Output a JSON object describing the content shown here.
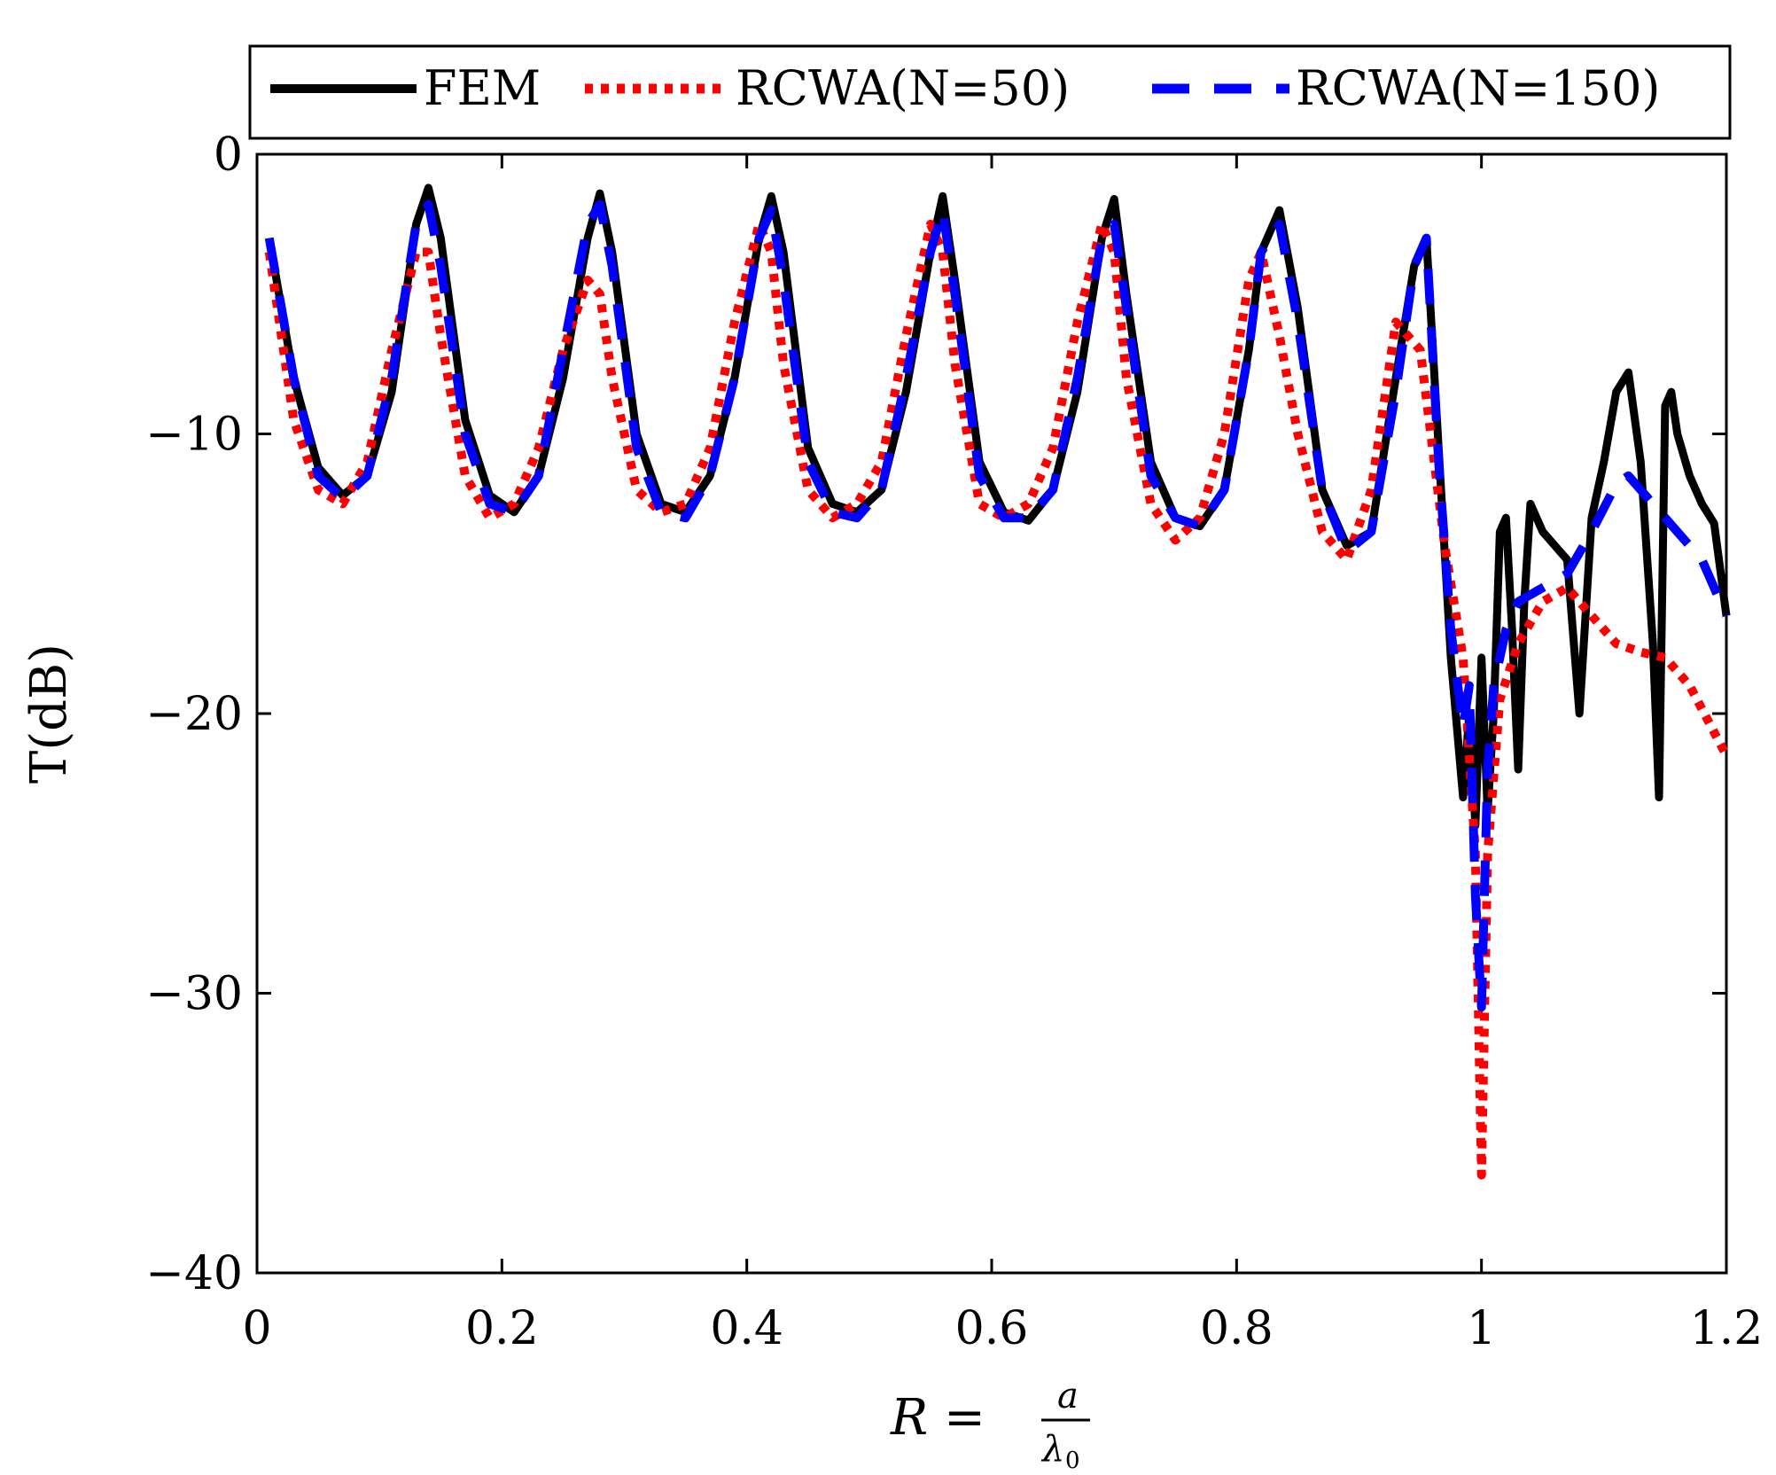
{
  "chart_data": {
    "type": "line",
    "title": "",
    "xlabel": {
      "main": "R =",
      "numerator": "a",
      "denominator": "λ",
      "subscript": "0"
    },
    "ylabel": "T(dB)",
    "xlim": [
      0,
      1.2
    ],
    "ylim": [
      -40,
      0
    ],
    "x_ticks": [
      0,
      0.2,
      0.4,
      0.6,
      0.8,
      1,
      1.2
    ],
    "x_tick_labels": [
      "0",
      "0.2",
      "0.4",
      "0.6",
      "0.8",
      "1",
      "1.2"
    ],
    "y_ticks": [
      0,
      -10,
      -20,
      -30,
      -40
    ],
    "y_tick_labels": [
      "0",
      "−10",
      "−20",
      "−30",
      "−40"
    ],
    "grid": false,
    "legend_position": "top",
    "series": [
      {
        "name": "FEM",
        "color": "#000000",
        "style": "solid",
        "x": [
          0.01,
          0.03,
          0.05,
          0.07,
          0.09,
          0.11,
          0.13,
          0.14,
          0.15,
          0.17,
          0.19,
          0.21,
          0.23,
          0.25,
          0.27,
          0.28,
          0.29,
          0.31,
          0.33,
          0.35,
          0.37,
          0.39,
          0.41,
          0.42,
          0.43,
          0.45,
          0.47,
          0.49,
          0.51,
          0.53,
          0.55,
          0.56,
          0.57,
          0.59,
          0.61,
          0.63,
          0.65,
          0.67,
          0.69,
          0.7,
          0.71,
          0.73,
          0.75,
          0.77,
          0.79,
          0.81,
          0.82,
          0.835,
          0.85,
          0.87,
          0.89,
          0.91,
          0.93,
          0.945,
          0.955,
          0.965,
          0.975,
          0.985,
          0.99,
          0.995,
          1.0,
          1.005,
          1.01,
          1.015,
          1.02,
          1.025,
          1.03,
          1.035,
          1.04,
          1.05,
          1.06,
          1.07,
          1.08,
          1.085,
          1.09,
          1.1,
          1.11,
          1.12,
          1.13,
          1.14,
          1.145,
          1.15,
          1.155,
          1.16,
          1.17,
          1.18,
          1.19,
          1.2
        ],
        "values": [
          -3.0,
          -8.0,
          -11.2,
          -12.2,
          -11.5,
          -8.5,
          -2.5,
          -1.2,
          -3.0,
          -9.5,
          -12.2,
          -12.8,
          -11.5,
          -8.0,
          -3.0,
          -1.4,
          -3.5,
          -10.0,
          -12.5,
          -12.8,
          -11.5,
          -8.0,
          -3.0,
          -1.5,
          -3.5,
          -10.5,
          -12.5,
          -12.8,
          -12.0,
          -8.5,
          -3.5,
          -1.5,
          -4.5,
          -11.0,
          -12.8,
          -13.1,
          -12.0,
          -8.5,
          -3.0,
          -1.6,
          -5.0,
          -11.0,
          -13.0,
          -13.3,
          -12.0,
          -7.0,
          -3.5,
          -2.0,
          -5.5,
          -12.0,
          -14.0,
          -13.5,
          -8.0,
          -4.0,
          -3.0,
          -10.5,
          -18.0,
          -23.0,
          -20.0,
          -24.0,
          -18.0,
          -23.5,
          -20.0,
          -13.5,
          -13.0,
          -17.0,
          -22.0,
          -16.0,
          -12.5,
          -13.5,
          -14.0,
          -14.5,
          -20.0,
          -16.5,
          -13.0,
          -11.0,
          -8.5,
          -7.8,
          -11.0,
          -17.5,
          -23.0,
          -9.0,
          -8.5,
          -10.0,
          -11.5,
          -12.5,
          -13.2,
          -16.5
        ]
      },
      {
        "name": "RCWA(N=50)",
        "color": "#ff0000",
        "style": "dotted",
        "x": [
          0.01,
          0.03,
          0.05,
          0.07,
          0.09,
          0.11,
          0.13,
          0.14,
          0.15,
          0.17,
          0.19,
          0.21,
          0.23,
          0.25,
          0.27,
          0.28,
          0.29,
          0.31,
          0.33,
          0.35,
          0.37,
          0.39,
          0.41,
          0.42,
          0.43,
          0.45,
          0.47,
          0.49,
          0.51,
          0.53,
          0.55,
          0.56,
          0.57,
          0.59,
          0.61,
          0.63,
          0.65,
          0.67,
          0.69,
          0.7,
          0.71,
          0.73,
          0.75,
          0.77,
          0.79,
          0.81,
          0.82,
          0.835,
          0.85,
          0.87,
          0.89,
          0.91,
          0.93,
          0.95,
          0.97,
          0.985,
          0.995,
          1.0,
          1.005,
          1.015,
          1.03,
          1.05,
          1.07,
          1.09,
          1.11,
          1.13,
          1.15,
          1.17,
          1.2
        ],
        "values": [
          -3.5,
          -9.5,
          -12.0,
          -12.5,
          -11.0,
          -7.0,
          -3.5,
          -3.5,
          -6.5,
          -11.5,
          -13.0,
          -12.5,
          -10.5,
          -7.0,
          -4.5,
          -5.0,
          -8.0,
          -12.0,
          -12.8,
          -12.5,
          -10.5,
          -6.0,
          -2.5,
          -3.5,
          -7.5,
          -12.0,
          -13.0,
          -12.5,
          -11.0,
          -6.5,
          -2.5,
          -3.5,
          -7.5,
          -12.5,
          -13.0,
          -12.5,
          -10.5,
          -6.0,
          -2.5,
          -3.5,
          -8.0,
          -12.5,
          -13.8,
          -13.0,
          -10.0,
          -4.5,
          -3.5,
          -6.5,
          -10.0,
          -13.5,
          -14.5,
          -12.0,
          -6.0,
          -7.0,
          -14.0,
          -18.0,
          -25.0,
          -36.5,
          -25.0,
          -19.5,
          -17.5,
          -16.0,
          -15.5,
          -16.5,
          -17.5,
          -17.8,
          -18.0,
          -19.0,
          -21.5
        ]
      },
      {
        "name": "RCWA(N=150)",
        "color": "#0000ff",
        "style": "dashed",
        "x": [
          0.01,
          0.03,
          0.05,
          0.07,
          0.09,
          0.11,
          0.13,
          0.14,
          0.15,
          0.17,
          0.19,
          0.21,
          0.23,
          0.25,
          0.27,
          0.28,
          0.29,
          0.31,
          0.33,
          0.35,
          0.37,
          0.39,
          0.41,
          0.42,
          0.43,
          0.45,
          0.47,
          0.49,
          0.51,
          0.53,
          0.55,
          0.56,
          0.57,
          0.59,
          0.61,
          0.63,
          0.65,
          0.67,
          0.69,
          0.7,
          0.71,
          0.73,
          0.75,
          0.77,
          0.79,
          0.81,
          0.82,
          0.835,
          0.85,
          0.87,
          0.89,
          0.91,
          0.93,
          0.945,
          0.955,
          0.965,
          0.975,
          0.985,
          0.99,
          0.995,
          1.0,
          1.005,
          1.01,
          1.02,
          1.03,
          1.05,
          1.07,
          1.09,
          1.11,
          1.12,
          1.14,
          1.16,
          1.18,
          1.2
        ],
        "values": [
          -3.0,
          -8.0,
          -11.5,
          -12.3,
          -11.5,
          -8.0,
          -2.5,
          -1.8,
          -4.0,
          -10.0,
          -12.5,
          -12.8,
          -11.5,
          -7.0,
          -2.5,
          -1.8,
          -4.0,
          -10.5,
          -12.8,
          -13.0,
          -11.5,
          -8.0,
          -3.0,
          -2.0,
          -4.5,
          -11.0,
          -12.8,
          -13.0,
          -12.0,
          -8.0,
          -3.5,
          -2.0,
          -5.0,
          -11.5,
          -13.0,
          -13.0,
          -12.0,
          -8.0,
          -3.0,
          -2.5,
          -5.5,
          -11.5,
          -13.0,
          -13.3,
          -12.0,
          -7.0,
          -3.5,
          -2.5,
          -6.0,
          -12.0,
          -14.2,
          -13.5,
          -8.5,
          -4.0,
          -3.0,
          -11.0,
          -17.0,
          -20.5,
          -19.0,
          -26.5,
          -30.5,
          -22.0,
          -19.0,
          -17.0,
          -16.0,
          -15.5,
          -15.0,
          -13.5,
          -11.8,
          -11.5,
          -12.5,
          -13.5,
          -14.5,
          -16.5
        ]
      }
    ]
  }
}
